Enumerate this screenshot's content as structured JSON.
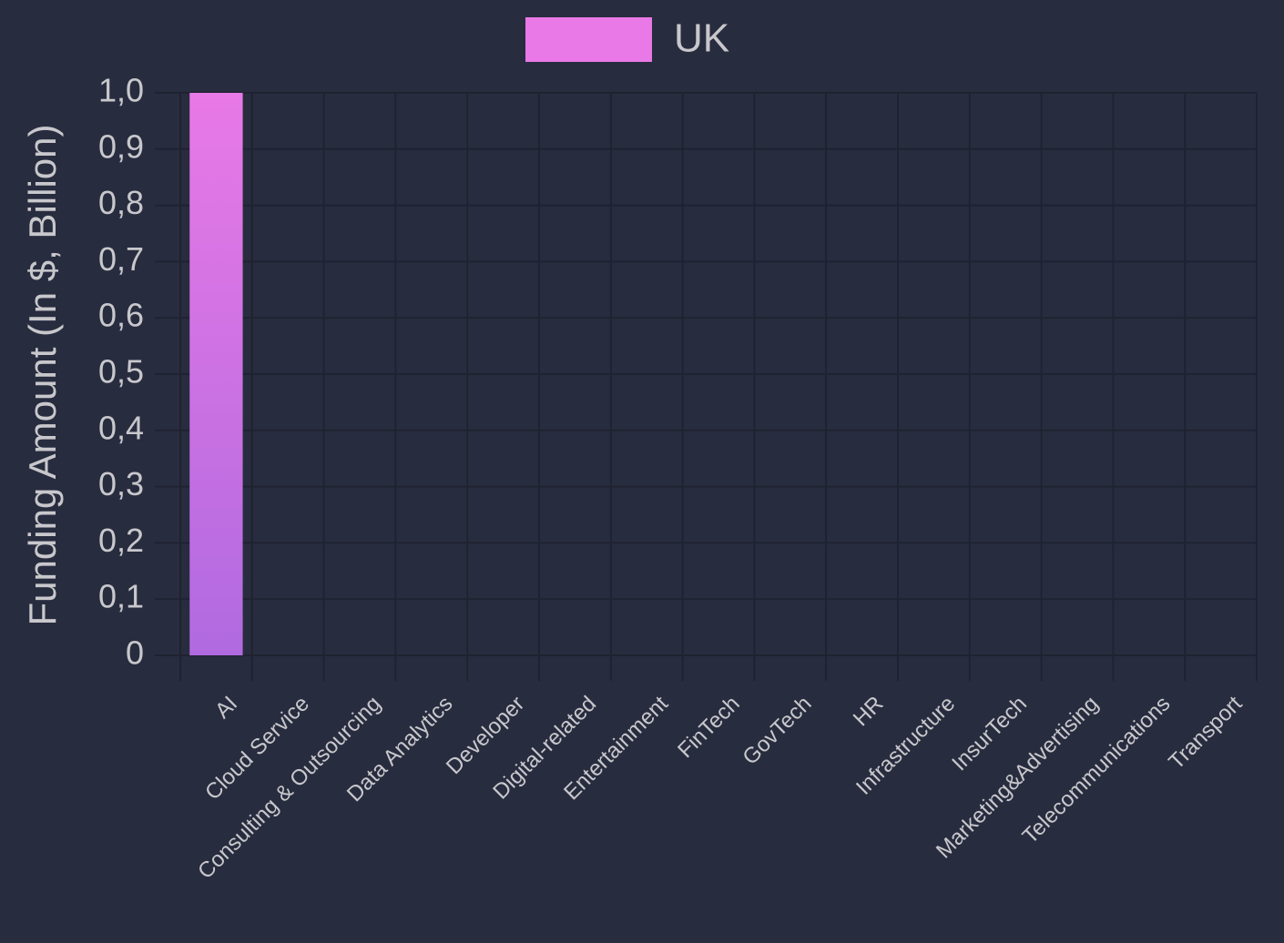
{
  "chart_data": {
    "type": "bar",
    "y_label": "Funding Amount (In $, Billion)",
    "categories": [
      "AI",
      "Cloud Service",
      "Consulting & Outsourcing",
      "Data Analytics",
      "Developer",
      "Digital-related",
      "Entertainment",
      "FinTech",
      "GovTech",
      "HR",
      "Infrastructure",
      "InsurTech",
      "Marketing&Advertising",
      "Telecommunications",
      "Transport"
    ],
    "series": [
      {
        "name": "UK",
        "color": "#e879e6",
        "values": [
          1,
          0,
          0,
          0,
          0,
          0,
          0,
          0,
          0,
          0,
          0,
          0,
          0,
          0,
          0
        ]
      }
    ],
    "ylim": [
      0,
      1
    ],
    "yticks": [
      0,
      {
        "value": 0.1,
        "label": "0,1"
      },
      {
        "value": 0.2,
        "label": "0,2"
      },
      {
        "value": 0.3,
        "label": "0,3"
      },
      {
        "value": 0.4,
        "label": "0,4"
      },
      {
        "value": 0.5,
        "label": "0,5"
      },
      {
        "value": 0.6,
        "label": "0,6"
      },
      {
        "value": 0.7,
        "label": "0,7"
      },
      {
        "value": 0.8,
        "label": "0,8"
      },
      {
        "value": 0.9,
        "label": "0,9"
      },
      {
        "value": 1,
        "label": "1,0"
      }
    ],
    "grid": true,
    "legend": "top"
  }
}
